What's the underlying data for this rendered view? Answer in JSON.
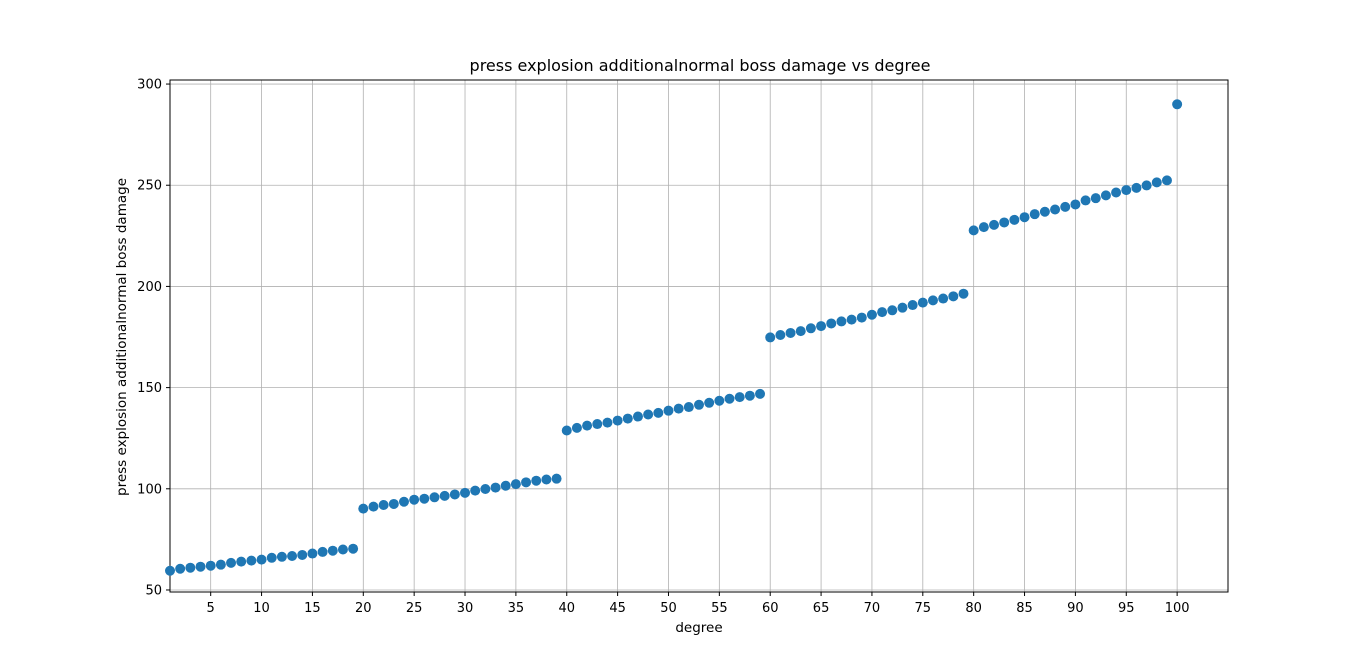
{
  "chart_data": {
    "type": "scatter",
    "title": "press explosion additionalnormal boss damage vs degree",
    "xlabel": "degree",
    "ylabel": "press explosion additionalnormal boss damage",
    "xlim": [
      1,
      105
    ],
    "ylim": [
      49,
      302
    ],
    "grid": true,
    "marker_color": "#1f77b4",
    "xticks": [
      5,
      10,
      15,
      20,
      25,
      30,
      35,
      40,
      45,
      50,
      55,
      60,
      65,
      70,
      75,
      80,
      85,
      90,
      95,
      100
    ],
    "yticks": [
      50,
      100,
      150,
      200,
      250,
      300
    ],
    "x": [
      1,
      2,
      3,
      4,
      5,
      6,
      7,
      8,
      9,
      10,
      11,
      12,
      13,
      14,
      15,
      16,
      17,
      18,
      19,
      20,
      21,
      22,
      23,
      24,
      25,
      26,
      27,
      28,
      29,
      30,
      31,
      32,
      33,
      34,
      35,
      36,
      37,
      38,
      39,
      40,
      41,
      42,
      43,
      44,
      45,
      46,
      47,
      48,
      49,
      50,
      51,
      52,
      53,
      54,
      55,
      56,
      57,
      58,
      59,
      60,
      61,
      62,
      63,
      64,
      65,
      66,
      67,
      68,
      69,
      70,
      71,
      72,
      73,
      74,
      75,
      76,
      77,
      78,
      79,
      80,
      81,
      82,
      83,
      84,
      85,
      86,
      87,
      88,
      89,
      90,
      91,
      92,
      93,
      94,
      95,
      96,
      97,
      98,
      99,
      100
    ],
    "y": [
      59.5,
      60.5,
      61.0,
      61.5,
      62.0,
      62.5,
      63.4,
      64.0,
      64.5,
      65.0,
      65.9,
      66.4,
      66.8,
      67.3,
      68.0,
      68.8,
      69.4,
      70.0,
      70.4,
      90.2,
      91.2,
      92.0,
      92.5,
      93.6,
      94.6,
      95.1,
      95.8,
      96.5,
      97.2,
      98.0,
      99.1,
      99.9,
      100.6,
      101.5,
      102.3,
      103.2,
      104.0,
      104.6,
      105.0,
      128.8,
      130.1,
      131.2,
      132.0,
      132.7,
      133.7,
      134.7,
      135.7,
      136.7,
      137.5,
      138.6,
      139.6,
      140.4,
      141.5,
      142.5,
      143.5,
      144.5,
      145.3,
      146.0,
      146.9,
      174.8,
      176.0,
      177.0,
      177.9,
      179.3,
      180.4,
      181.7,
      182.7,
      183.6,
      184.6,
      186.0,
      187.3,
      188.2,
      189.5,
      190.8,
      192.0,
      193.1,
      194.0,
      195.1,
      196.4,
      227.7,
      229.3,
      230.4,
      231.6,
      232.9,
      234.2,
      235.7,
      236.9,
      238.0,
      239.3,
      240.5,
      242.5,
      243.6,
      245.0,
      246.4,
      247.6,
      248.7,
      249.9,
      251.4,
      252.4,
      290.0
    ]
  }
}
